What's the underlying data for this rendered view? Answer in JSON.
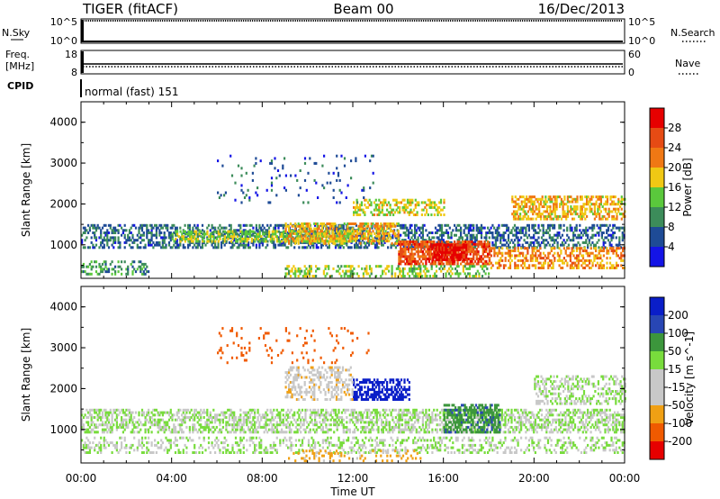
{
  "header": {
    "radar": "TIGER (fitACF)",
    "beam": "Beam 00",
    "date": "16/Dec/2013"
  },
  "strips": {
    "nsky_label": "N.Sky",
    "nsearch_label": "N.Search",
    "nsky_ticks": [
      "10^5",
      "10^0"
    ],
    "nsearch_ticks": [
      "10^5",
      "10^0"
    ],
    "freq_label_1": "Freq.",
    "freq_label_2": "[MHz]",
    "freq_ticks": [
      "18",
      "8"
    ],
    "nave_label": "Nave",
    "nave_ticks": [
      "60",
      "0"
    ],
    "cpid_label": "CPID",
    "cpid_value": "normal (fast) 151"
  },
  "colors": {
    "power_scale": [
      "#1414e6",
      "#1e4b96",
      "#3c8c5a",
      "#5ac83c",
      "#f0c814",
      "#f07814",
      "#e64b14",
      "#e60000"
    ],
    "velocity_scale": [
      "#e60000",
      "#f05a00",
      "#f0a014",
      "#c8c8c8",
      "#c8c8c8",
      "#78dc3c",
      "#3c963c",
      "#2846b4",
      "#0a1ec8"
    ]
  },
  "chart_data": [
    {
      "type": "heatmap",
      "panel": "power",
      "xlabel": "",
      "ylabel": "Slant Range [km]",
      "x_ticks": [
        "00:00",
        "04:00",
        "08:00",
        "12:00",
        "16:00",
        "20:00",
        "00:00"
      ],
      "y_ticks": [
        "1000",
        "2000",
        "3000",
        "4000"
      ],
      "ylim": [
        180,
        4500
      ],
      "xlim": [
        0,
        24
      ],
      "colorbar": {
        "label": "Power [dB]",
        "ticks": [
          "4",
          "8",
          "12",
          "16",
          "20",
          "24",
          "28"
        ],
        "range": [
          0,
          30
        ]
      },
      "regions": [
        {
          "t0": 0,
          "t1": 24,
          "r0": 900,
          "r1": 1500,
          "value": 7,
          "density": 0.45
        },
        {
          "t0": 4,
          "t1": 12,
          "r0": 1050,
          "r1": 1350,
          "value": 14,
          "density": 0.6
        },
        {
          "t0": 9,
          "t1": 14,
          "r0": 1000,
          "r1": 1500,
          "value": 18,
          "density": 0.55
        },
        {
          "t0": 14,
          "t1": 18,
          "r0": 500,
          "r1": 1100,
          "value": 24,
          "density": 0.7
        },
        {
          "t0": 15.5,
          "t1": 17,
          "r0": 600,
          "r1": 1000,
          "value": 28,
          "density": 0.85
        },
        {
          "t0": 12,
          "t1": 16,
          "r0": 1700,
          "r1": 2100,
          "value": 16,
          "density": 0.45
        },
        {
          "t0": 19,
          "t1": 24,
          "r0": 1600,
          "r1": 2200,
          "value": 18,
          "density": 0.55
        },
        {
          "t0": 18,
          "t1": 24,
          "r0": 400,
          "r1": 900,
          "value": 20,
          "density": 0.45
        },
        {
          "t0": 0,
          "t1": 3,
          "r0": 250,
          "r1": 600,
          "value": 10,
          "density": 0.3
        },
        {
          "t0": 6,
          "t1": 13,
          "r0": 2000,
          "r1": 3200,
          "value": 6,
          "density": 0.06
        },
        {
          "t0": 9,
          "t1": 18,
          "r0": 200,
          "r1": 500,
          "value": 14,
          "density": 0.35
        }
      ]
    },
    {
      "type": "heatmap",
      "panel": "velocity",
      "xlabel": "Time UT",
      "ylabel": "Slant Range [km]",
      "x_ticks": [
        "00:00",
        "04:00",
        "08:00",
        "12:00",
        "16:00",
        "20:00",
        "00:00"
      ],
      "y_ticks": [
        "1000",
        "2000",
        "3000",
        "4000"
      ],
      "ylim": [
        180,
        4500
      ],
      "xlim": [
        0,
        24
      ],
      "colorbar": {
        "label": "Velocity [m s^-1]",
        "ticks": [
          "-200",
          "-100",
          "-50",
          "-15",
          "15",
          "50",
          "100",
          "200"
        ],
        "range": [
          -250,
          250
        ]
      },
      "regions": [
        {
          "t0": 0,
          "t1": 24,
          "r0": 900,
          "r1": 1500,
          "value": 0,
          "density": 0.5
        },
        {
          "t0": 0,
          "t1": 24,
          "r0": 400,
          "r1": 800,
          "value": 0,
          "density": 0.3
        },
        {
          "t0": 16,
          "t1": 18.5,
          "r0": 900,
          "r1": 1600,
          "value": 40,
          "density": 0.6
        },
        {
          "t0": 12,
          "t1": 14.5,
          "r0": 1700,
          "r1": 2200,
          "value": 200,
          "density": 0.55
        },
        {
          "t0": 9,
          "t1": 12,
          "r0": 1700,
          "r1": 2500,
          "value": -40,
          "density": 0.35
        },
        {
          "t0": 20,
          "t1": 24,
          "r0": 1600,
          "r1": 2300,
          "value": 0,
          "density": 0.4
        },
        {
          "t0": 9,
          "t1": 15,
          "r0": 200,
          "r1": 500,
          "value": -60,
          "density": 0.2
        },
        {
          "t0": 6,
          "t1": 13,
          "r0": 2600,
          "r1": 3500,
          "value": -120,
          "density": 0.05
        }
      ]
    }
  ]
}
